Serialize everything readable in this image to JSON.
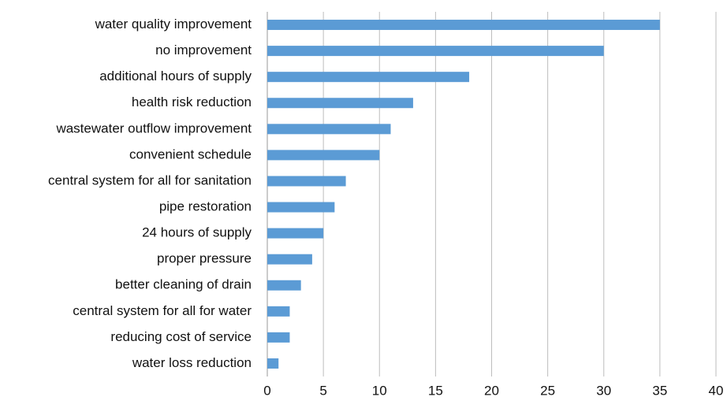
{
  "chart_data": {
    "type": "bar",
    "orientation": "horizontal",
    "categories": [
      "water quality improvement",
      "no improvement",
      "additional hours of supply",
      "health risk reduction",
      "wastewater outflow improvement",
      "convenient schedule",
      "central system for all for sanitation",
      "pipe restoration",
      "24 hours of supply",
      "proper pressure",
      "better cleaning of drain",
      "central system for all for water",
      "reducing cost of service",
      "water loss reduction"
    ],
    "values": [
      35,
      30,
      18,
      13,
      11,
      10,
      7,
      6,
      5,
      4,
      3,
      2,
      2,
      1
    ],
    "color": "#5b9bd5",
    "xlim": [
      0,
      40
    ],
    "xticks": [
      0,
      5,
      10,
      15,
      20,
      25,
      30,
      35,
      40
    ],
    "grid": true
  }
}
